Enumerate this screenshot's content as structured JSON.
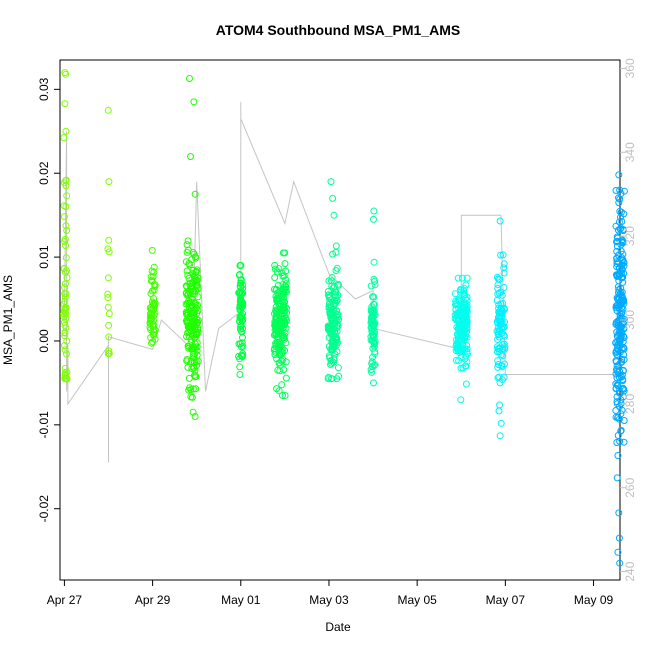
{
  "chart_data": {
    "type": "scatter",
    "title": "ATOM4 Southbound MSA_PM1_AMS",
    "xlabel": "Date",
    "ylabel": "MSA_PM1_AMS",
    "xlim": [
      -0.1,
      12.6
    ],
    "ylim": [
      -0.0285,
      0.0335
    ],
    "x_ticks": [
      {
        "value": 0,
        "label": "Apr 27"
      },
      {
        "value": 2,
        "label": "Apr 29"
      },
      {
        "value": 4,
        "label": "May 01"
      },
      {
        "value": 6,
        "label": "May 03"
      },
      {
        "value": 8,
        "label": "May 05"
      },
      {
        "value": 10,
        "label": "May 07"
      },
      {
        "value": 12,
        "label": "May 09"
      }
    ],
    "y_ticks": [
      {
        "value": -0.02,
        "label": "-0.02"
      },
      {
        "value": -0.01,
        "label": "-0.01"
      },
      {
        "value": 0.0,
        "label": "0.00"
      },
      {
        "value": 0.01,
        "label": "0.01"
      },
      {
        "value": 0.02,
        "label": "0.02"
      },
      {
        "value": 0.03,
        "label": "0.03"
      }
    ],
    "secondary_axis": {
      "ylim": [
        238,
        362
      ],
      "color": "#bfbfbf",
      "ticks": [
        {
          "value": 240,
          "label": "240"
        },
        {
          "value": 260,
          "label": "260"
        },
        {
          "value": 280,
          "label": "280"
        },
        {
          "value": 300,
          "label": "300"
        },
        {
          "value": 320,
          "label": "320"
        },
        {
          "value": 340,
          "label": "340"
        },
        {
          "value": 360,
          "label": "360"
        }
      ]
    },
    "point_clusters": [
      {
        "x": 0.02,
        "spread": 0.04,
        "center": 0.006,
        "sd": 0.009,
        "n": 60,
        "min": -0.0045,
        "max": 0.032,
        "color": "#80ff00",
        "extra": [
          0.032,
          0.0318,
          0.0283,
          0.025,
          -0.0045,
          -0.004
        ]
      },
      {
        "x": 1.0,
        "spread": 0.02,
        "center": 0.006,
        "sd": 0.007,
        "n": 12,
        "min": -0.0015,
        "max": 0.0275,
        "color": "#80ff00",
        "extra": [
          0.0275,
          0.019,
          0.012,
          -0.0012
        ]
      },
      {
        "x": 2.0,
        "spread": 0.06,
        "center": 0.0035,
        "sd": 0.0025,
        "n": 55,
        "min": -0.0015,
        "max": 0.0108,
        "color": "#40ff00",
        "extra": [
          0.0108
        ]
      },
      {
        "x": 2.9,
        "spread": 0.14,
        "center": 0.0025,
        "sd": 0.004,
        "n": 180,
        "min": -0.009,
        "max": 0.0313,
        "color": "#20ff00",
        "extra": [
          0.0313,
          0.0285,
          0.022,
          0.0175,
          -0.009,
          -0.0085
        ]
      },
      {
        "x": 4.0,
        "spread": 0.05,
        "center": 0.0035,
        "sd": 0.0025,
        "n": 70,
        "min": -0.004,
        "max": 0.009,
        "color": "#00ff40",
        "extra": [
          0.009,
          -0.004
        ]
      },
      {
        "x": 4.9,
        "spread": 0.14,
        "center": 0.002,
        "sd": 0.003,
        "n": 180,
        "min": -0.0065,
        "max": 0.0105,
        "color": "#00ff55",
        "extra": [
          0.0105,
          -0.0065
        ]
      },
      {
        "x": 6.1,
        "spread": 0.12,
        "center": 0.002,
        "sd": 0.0035,
        "n": 130,
        "min": -0.0045,
        "max": 0.019,
        "color": "#00ff90",
        "extra": [
          0.019,
          0.017,
          0.015,
          -0.0045
        ]
      },
      {
        "x": 7.0,
        "spread": 0.05,
        "center": 0.0015,
        "sd": 0.0025,
        "n": 70,
        "min": -0.005,
        "max": 0.0155,
        "color": "#00ffa0",
        "extra": [
          0.0155,
          0.0145,
          -0.005
        ]
      },
      {
        "x": 9.0,
        "spread": 0.14,
        "center": 0.002,
        "sd": 0.0025,
        "n": 180,
        "min": -0.007,
        "max": 0.0075,
        "color": "#00ffee",
        "extra": [
          -0.007
        ]
      },
      {
        "x": 9.9,
        "spread": 0.09,
        "center": 0.002,
        "sd": 0.0035,
        "n": 90,
        "min": -0.0115,
        "max": 0.0145,
        "color": "#00f0ff",
        "extra": [
          0.0143,
          -0.0113
        ]
      },
      {
        "x": 12.6,
        "spread": 0.1,
        "center": 0.002,
        "sd": 0.007,
        "n": 230,
        "min": -0.0265,
        "max": 0.0198,
        "color": "#00aaff",
        "extra": [
          0.0198,
          0.018,
          0.0165,
          -0.0265,
          -0.0252,
          -0.0235,
          -0.0205
        ]
      }
    ],
    "secondary_series": [
      {
        "x": 0.0,
        "y": 300
      },
      {
        "x": 0.05,
        "y": 345
      },
      {
        "x": 0.05,
        "y": 283
      },
      {
        "x": 0.08,
        "y": 294
      },
      {
        "x": 0.08,
        "y": 280
      },
      {
        "x": 1.0,
        "y": 294
      },
      {
        "x": 1.0,
        "y": 266
      },
      {
        "x": 1.0,
        "y": 296
      },
      {
        "x": 2.0,
        "y": 293
      },
      {
        "x": 2.2,
        "y": 300
      },
      {
        "x": 2.9,
        "y": 293
      },
      {
        "x": 3.0,
        "y": 333
      },
      {
        "x": 3.2,
        "y": 283
      },
      {
        "x": 3.5,
        "y": 298
      },
      {
        "x": 4.0,
        "y": 302
      },
      {
        "x": 4.0,
        "y": 352
      },
      {
        "x": 4.0,
        "y": 348
      },
      {
        "x": 5.0,
        "y": 323
      },
      {
        "x": 5.2,
        "y": 333
      },
      {
        "x": 6.0,
        "y": 311
      },
      {
        "x": 6.6,
        "y": 305
      },
      {
        "x": 7.0,
        "y": 307
      },
      {
        "x": 7.0,
        "y": 298
      },
      {
        "x": 9.0,
        "y": 293
      },
      {
        "x": 9.0,
        "y": 325
      },
      {
        "x": 9.9,
        "y": 325
      },
      {
        "x": 10.0,
        "y": 287
      },
      {
        "x": 12.6,
        "y": 287
      }
    ]
  }
}
